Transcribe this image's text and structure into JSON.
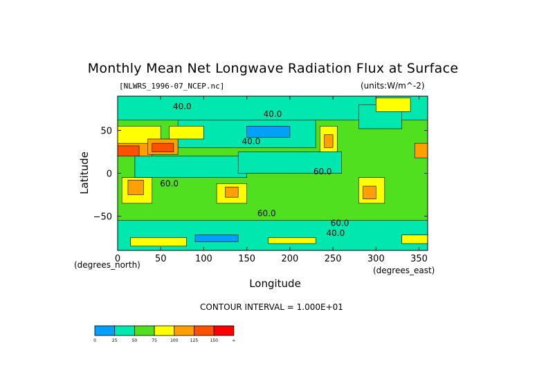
{
  "chart_data": {
    "type": "heatmap",
    "title": "Monthly Mean Net Longwave Radiation Flux at Surface",
    "file_label": "[NLWRS_1996-07_NCEP.nc]",
    "units_label": "(units:W/m^-2)",
    "xlabel": "Longitude",
    "ylabel": "Latitude",
    "xlabel_unit": "(degrees_east)",
    "ylabel_unit": "(degrees_north)",
    "contour_interval": "CONTOUR INTERVAL = 1.000E+01",
    "xlim": [
      0,
      360
    ],
    "ylim": [
      -90,
      90
    ],
    "xticks": [
      0,
      50,
      100,
      150,
      200,
      250,
      300,
      350
    ],
    "yticks": [
      50,
      0,
      -50
    ],
    "ytick_labels": [
      "50",
      "0",
      "−50"
    ],
    "contour_labels": [
      {
        "lon": 75,
        "lat": 78,
        "text": "40.0"
      },
      {
        "lon": 180,
        "lat": 69,
        "text": "40.0"
      },
      {
        "lon": 155,
        "lat": 37,
        "text": "40.0"
      },
      {
        "lon": 238,
        "lat": 2,
        "text": "60.0"
      },
      {
        "lon": 60,
        "lat": -12,
        "text": "60.0"
      },
      {
        "lon": 173,
        "lat": -47,
        "text": "60.0"
      },
      {
        "lon": 258,
        "lat": -58,
        "text": "60.0"
      },
      {
        "lon": 253,
        "lat": -70,
        "text": "40.0"
      }
    ],
    "colorbar": {
      "boundaries": [
        "0",
        "25",
        "50",
        "75",
        "100",
        "125",
        "150",
        "∞"
      ],
      "colors": [
        "#00a0ff",
        "#00e8b0",
        "#50e020",
        "#ffff00",
        "#ffa000",
        "#ff5000",
        "#ff0000"
      ]
    },
    "regions": [
      {
        "level": 2,
        "lon": [
          0,
          360
        ],
        "lat": [
          -90,
          90
        ]
      },
      {
        "level": 1,
        "lon": [
          0,
          360
        ],
        "lat": [
          62,
          90
        ]
      },
      {
        "level": 1,
        "lon": [
          0,
          360
        ],
        "lat": [
          -90,
          -55
        ]
      },
      {
        "level": 1,
        "lon": [
          70,
          230
        ],
        "lat": [
          30,
          62
        ]
      },
      {
        "level": 1,
        "lon": [
          20,
          150
        ],
        "lat": [
          -5,
          20
        ]
      },
      {
        "level": 1,
        "lon": [
          140,
          260
        ],
        "lat": [
          0,
          25
        ]
      },
      {
        "level": 0,
        "lon": [
          150,
          200
        ],
        "lat": [
          42,
          55
        ]
      },
      {
        "level": 1,
        "lon": [
          280,
          330
        ],
        "lat": [
          52,
          80
        ]
      },
      {
        "level": 3,
        "lon": [
          0,
          50
        ],
        "lat": [
          22,
          55
        ]
      },
      {
        "level": 4,
        "lon": [
          0,
          40
        ],
        "lat": [
          20,
          35
        ]
      },
      {
        "level": 5,
        "lon": [
          0,
          25
        ],
        "lat": [
          20,
          32
        ]
      },
      {
        "level": 4,
        "lon": [
          35,
          70
        ],
        "lat": [
          22,
          40
        ]
      },
      {
        "level": 5,
        "lon": [
          40,
          65
        ],
        "lat": [
          25,
          35
        ]
      },
      {
        "level": 3,
        "lon": [
          60,
          100
        ],
        "lat": [
          40,
          55
        ]
      },
      {
        "level": 3,
        "lon": [
          5,
          40
        ],
        "lat": [
          -35,
          -5
        ]
      },
      {
        "level": 4,
        "lon": [
          12,
          30
        ],
        "lat": [
          -25,
          -8
        ]
      },
      {
        "level": 3,
        "lon": [
          115,
          150
        ],
        "lat": [
          -35,
          -12
        ]
      },
      {
        "level": 4,
        "lon": [
          125,
          140
        ],
        "lat": [
          -28,
          -16
        ]
      },
      {
        "level": 3,
        "lon": [
          235,
          255
        ],
        "lat": [
          25,
          55
        ]
      },
      {
        "level": 4,
        "lon": [
          240,
          250
        ],
        "lat": [
          30,
          45
        ]
      },
      {
        "level": 3,
        "lon": [
          280,
          310
        ],
        "lat": [
          -35,
          -5
        ]
      },
      {
        "level": 4,
        "lon": [
          285,
          300
        ],
        "lat": [
          -30,
          -15
        ]
      },
      {
        "level": 3,
        "lon": [
          300,
          340
        ],
        "lat": [
          72,
          88
        ]
      },
      {
        "level": 4,
        "lon": [
          345,
          360
        ],
        "lat": [
          18,
          35
        ]
      },
      {
        "level": 3,
        "lon": [
          15,
          80
        ],
        "lat": [
          -85,
          -75
        ]
      },
      {
        "level": 3,
        "lon": [
          330,
          360
        ],
        "lat": [
          -82,
          -72
        ]
      },
      {
        "level": 3,
        "lon": [
          175,
          230
        ],
        "lat": [
          -82,
          -75
        ]
      },
      {
        "level": 0,
        "lon": [
          90,
          140
        ],
        "lat": [
          -80,
          -72
        ]
      }
    ]
  }
}
